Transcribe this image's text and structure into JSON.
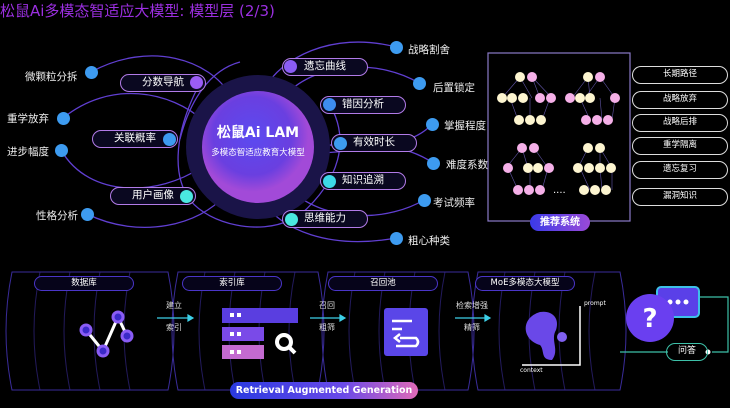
{
  "title": "松鼠Ai多模态智适应大模型: 模型层 (2/3)",
  "center": {
    "title": "松鼠Ai  LAM",
    "subtitle": "多模态智适应教育大模型"
  },
  "inner_nodes": [
    "分数导航",
    "遗忘曲线",
    "错因分析",
    "关联概率",
    "有效时长",
    "知识追溯",
    "用户画像",
    "思维能力"
  ],
  "outer_nodes": [
    "微颗粒分拆",
    "重学放弃",
    "进步幅度",
    "性格分析",
    "战略割舍",
    "后置锁定",
    "掌握程度",
    "难度系数",
    "考试频率",
    "粗心种类"
  ],
  "recommend": {
    "label": "推荐系统",
    "ellipsis": "....",
    "outputs": [
      "长期路径",
      "战略放弃",
      "战略后排",
      "重学隔离",
      "遗忘复习",
      "漏洞知识"
    ]
  },
  "pipeline": {
    "stages": [
      "数据库",
      "索引库",
      "召回池",
      "MoE多模态大模型"
    ],
    "arrows": [
      {
        "top": "建立",
        "bottom": "索引"
      },
      {
        "top": "召回",
        "bottom": "粗筛"
      },
      {
        "top": "检索增强",
        "bottom": "精筛"
      }
    ],
    "axis": {
      "y": "prompt",
      "x": "context"
    },
    "qa": "问答",
    "banner": "Retrieval Augmented Generation"
  },
  "colors": {
    "title": "#9b2fe0",
    "pill_border": "#b27be8",
    "dot": "#3d9bf0",
    "accent": "#6a3ff0"
  }
}
